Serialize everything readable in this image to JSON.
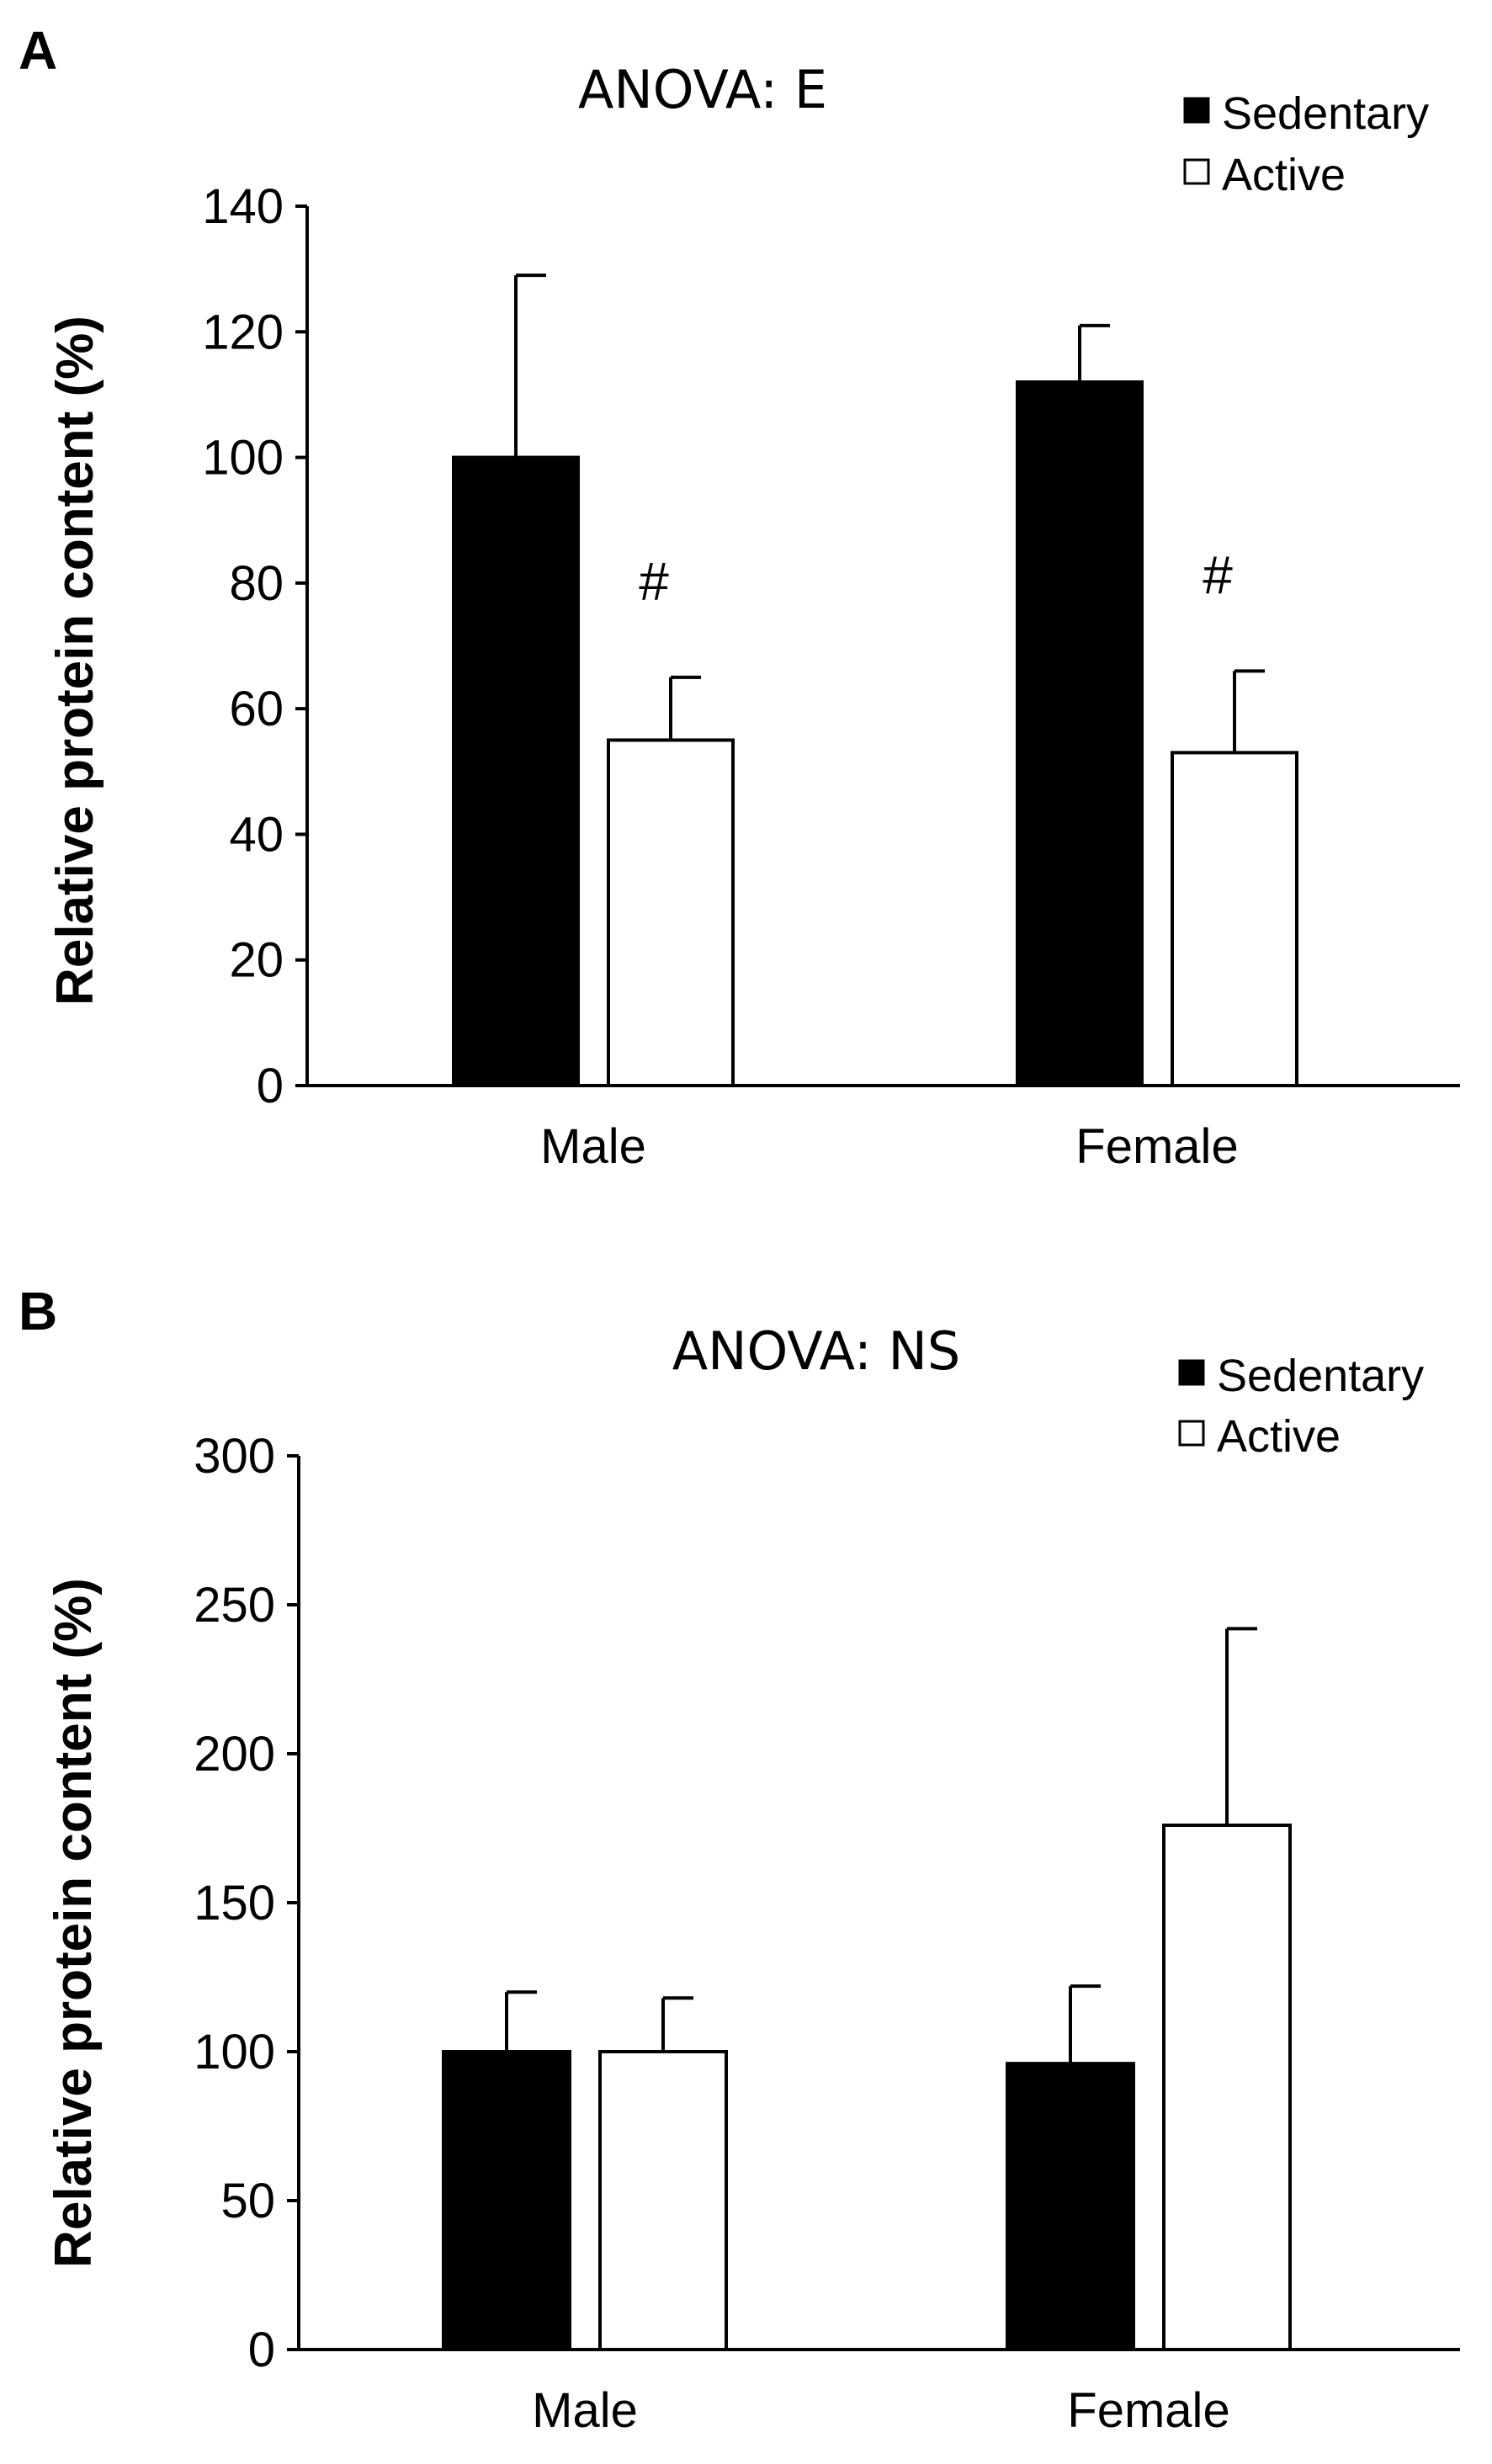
{
  "chart_data": [
    {
      "panel": "A",
      "type": "bar",
      "title": "ANOVA: E",
      "ylabel": "Relative protein content (%)",
      "xlabel": "",
      "ylim": [
        0,
        140
      ],
      "yticks": [
        0,
        20,
        40,
        60,
        80,
        100,
        120,
        140
      ],
      "categories": [
        "Male",
        "Female"
      ],
      "series": [
        {
          "name": "Sedentary",
          "color": "#000000",
          "values": [
            100,
            112
          ],
          "errors": [
            29,
            9
          ]
        },
        {
          "name": "Active",
          "color": "#ffffff",
          "values": [
            55,
            53
          ],
          "errors": [
            10,
            13
          ]
        }
      ],
      "annotations": [
        {
          "text": "#",
          "series": 1,
          "category": 0
        },
        {
          "text": "#",
          "series": 1,
          "category": 1
        }
      ],
      "legend": "top-right",
      "grid": false
    },
    {
      "panel": "B",
      "type": "bar",
      "title": "ANOVA: NS",
      "ylabel": "Relative protein content (%)",
      "xlabel": "",
      "ylim": [
        0,
        300
      ],
      "yticks": [
        0,
        50,
        100,
        150,
        200,
        250,
        300
      ],
      "categories": [
        "Male",
        "Female"
      ],
      "series": [
        {
          "name": "Sedentary",
          "color": "#000000",
          "values": [
            100,
            96
          ],
          "errors": [
            20,
            26
          ]
        },
        {
          "name": "Active",
          "color": "#ffffff",
          "values": [
            100,
            176
          ],
          "errors": [
            18,
            66
          ]
        }
      ],
      "annotations": [],
      "legend": "top-right",
      "grid": false
    }
  ]
}
